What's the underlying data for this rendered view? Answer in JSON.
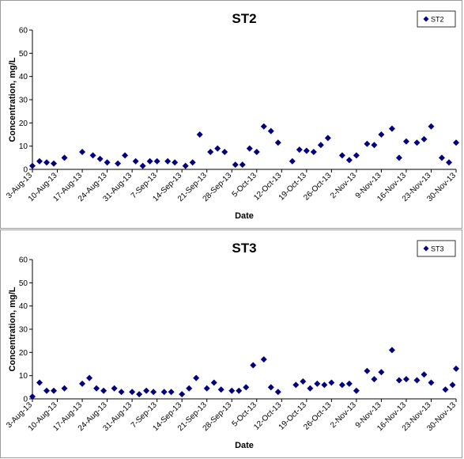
{
  "chart_data": [
    {
      "type": "scatter",
      "title": "ST2",
      "xlabel": "Date",
      "ylabel": "Concentration, mg/L",
      "ylim": [
        0,
        60
      ],
      "yticks": [
        0,
        10,
        20,
        30,
        40,
        50,
        60
      ],
      "xlim": [
        "2013-08-03",
        "2013-11-30"
      ],
      "xtick_labels": [
        "3-Aug-13",
        "10-Aug-13",
        "17-Aug-13",
        "24-Aug-13",
        "31-Aug-13",
        "7-Sep-13",
        "14-Sep-13",
        "21-Sep-13",
        "28-Sep-13",
        "5-Oct-13",
        "12-Oct-13",
        "19-Oct-13",
        "26-Oct-13",
        "2-Nov-13",
        "9-Nov-13",
        "16-Nov-13",
        "23-Nov-13",
        "30-Nov-13"
      ],
      "legend": "top-right",
      "grid": false,
      "series": [
        {
          "name": "ST2",
          "color": "#000080",
          "marker": "diamond",
          "x": [
            "2013-08-03",
            "2013-08-05",
            "2013-08-07",
            "2013-08-09",
            "2013-08-12",
            "2013-08-17",
            "2013-08-20",
            "2013-08-22",
            "2013-08-24",
            "2013-08-27",
            "2013-08-29",
            "2013-09-01",
            "2013-09-03",
            "2013-09-05",
            "2013-09-07",
            "2013-09-10",
            "2013-09-12",
            "2013-09-15",
            "2013-09-17",
            "2013-09-19",
            "2013-09-22",
            "2013-09-24",
            "2013-09-26",
            "2013-09-29",
            "2013-10-01",
            "2013-10-03",
            "2013-10-05",
            "2013-10-07",
            "2013-10-09",
            "2013-10-11",
            "2013-10-15",
            "2013-10-17",
            "2013-10-19",
            "2013-10-21",
            "2013-10-23",
            "2013-10-25",
            "2013-10-29",
            "2013-10-31",
            "2013-11-02",
            "2013-11-05",
            "2013-11-07",
            "2013-11-09",
            "2013-11-12",
            "2013-11-14",
            "2013-11-16",
            "2013-11-19",
            "2013-11-21",
            "2013-11-23",
            "2013-11-26",
            "2013-11-28",
            "2013-11-30"
          ],
          "y": [
            1.5,
            3.5,
            3.0,
            2.5,
            5.0,
            7.5,
            6.0,
            4.5,
            3.0,
            2.5,
            6.0,
            3.5,
            1.5,
            3.5,
            3.5,
            3.5,
            3.0,
            1.5,
            3.0,
            15.0,
            7.5,
            9.0,
            7.5,
            2.0,
            2.0,
            9.0,
            7.5,
            18.5,
            16.5,
            11.5,
            3.5,
            8.5,
            8.0,
            7.5,
            10.5,
            13.5,
            6.0,
            4.0,
            6.0,
            11.0,
            10.5,
            15.0,
            17.5,
            5.0,
            12.0,
            11.5,
            13.0,
            18.5,
            5.0,
            3.0,
            11.5
          ]
        }
      ]
    },
    {
      "type": "scatter",
      "title": "ST3",
      "xlabel": "Date",
      "ylabel": "Concentration, mg/L",
      "ylim": [
        0,
        60
      ],
      "yticks": [
        0,
        10,
        20,
        30,
        40,
        50,
        60
      ],
      "xlim": [
        "2013-08-03",
        "2013-11-30"
      ],
      "xtick_labels": [
        "3-Aug-13",
        "10-Aug-13",
        "17-Aug-13",
        "24-Aug-13",
        "31-Aug-13",
        "7-Sep-13",
        "14-Sep-13",
        "21-Sep-13",
        "28-Sep-13",
        "5-Oct-13",
        "12-Oct-13",
        "19-Oct-13",
        "26-Oct-13",
        "2-Nov-13",
        "9-Nov-13",
        "16-Nov-13",
        "23-Nov-13",
        "30-Nov-13"
      ],
      "legend": "top-right",
      "grid": false,
      "series": [
        {
          "name": "ST3",
          "color": "#000080",
          "marker": "diamond",
          "x": [
            "2013-08-03",
            "2013-08-05",
            "2013-08-07",
            "2013-08-09",
            "2013-08-12",
            "2013-08-17",
            "2013-08-19",
            "2013-08-21",
            "2013-08-23",
            "2013-08-26",
            "2013-08-28",
            "2013-08-31",
            "2013-09-02",
            "2013-09-04",
            "2013-09-06",
            "2013-09-09",
            "2013-09-11",
            "2013-09-14",
            "2013-09-16",
            "2013-09-18",
            "2013-09-21",
            "2013-09-23",
            "2013-09-25",
            "2013-09-28",
            "2013-09-30",
            "2013-10-02",
            "2013-10-04",
            "2013-10-07",
            "2013-10-09",
            "2013-10-11",
            "2013-10-16",
            "2013-10-18",
            "2013-10-20",
            "2013-10-22",
            "2013-10-24",
            "2013-10-26",
            "2013-10-29",
            "2013-10-31",
            "2013-11-02",
            "2013-11-05",
            "2013-11-07",
            "2013-11-09",
            "2013-11-12",
            "2013-11-14",
            "2013-11-16",
            "2013-11-19",
            "2013-11-21",
            "2013-11-23",
            "2013-11-27",
            "2013-11-29",
            "2013-11-30"
          ],
          "y": [
            1.0,
            7.0,
            3.5,
            3.5,
            4.5,
            6.5,
            9.0,
            4.5,
            3.5,
            4.5,
            3.0,
            3.0,
            2.0,
            3.5,
            3.0,
            3.0,
            3.0,
            2.0,
            4.5,
            9.0,
            4.5,
            7.0,
            4.0,
            3.5,
            3.5,
            5.0,
            14.5,
            17.0,
            5.0,
            3.0,
            6.0,
            7.5,
            4.5,
            6.5,
            6.0,
            7.0,
            6.0,
            6.5,
            3.5,
            12.0,
            8.5,
            11.5,
            21.0,
            8.0,
            8.5,
            8.0,
            10.5,
            7.0,
            4.0,
            6.0,
            13.0
          ]
        }
      ]
    }
  ]
}
